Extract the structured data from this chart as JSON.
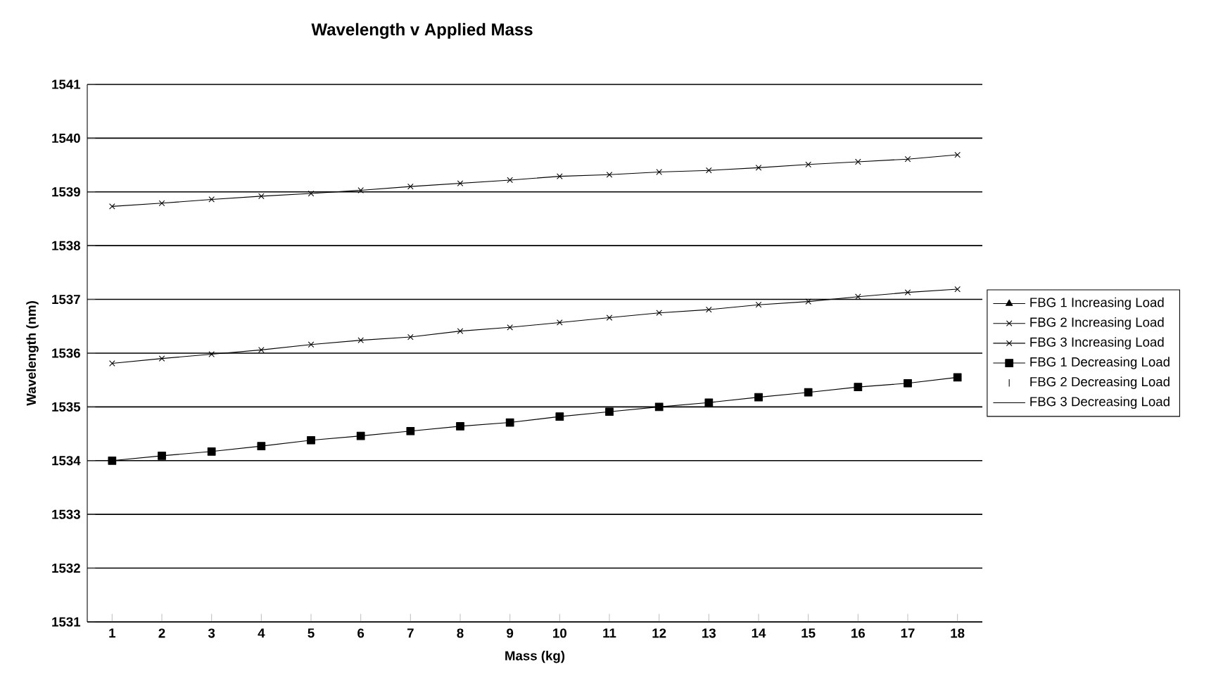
{
  "chart_data": {
    "type": "line",
    "title": "Wavelength v Applied Mass",
    "xlabel": "Mass (kg)",
    "ylabel": "Wavelength (nm)",
    "categories": [
      "1",
      "2",
      "3",
      "4",
      "5",
      "6",
      "7",
      "8",
      "9",
      "10",
      "11",
      "12",
      "13",
      "14",
      "15",
      "16",
      "17",
      "18"
    ],
    "ylim": [
      1531,
      1541
    ],
    "yticks": [
      1531,
      1532,
      1533,
      1534,
      1535,
      1536,
      1537,
      1538,
      1539,
      1540,
      1541
    ],
    "grid": "y",
    "legend": "right",
    "series": [
      {
        "name": "FBG 1 Increasing Load",
        "color": "#000000",
        "marker": "triangle",
        "values": [
          null,
          null,
          null,
          null,
          null,
          null,
          null,
          null,
          null,
          null,
          null,
          null,
          null,
          null,
          null,
          null,
          null,
          null
        ]
      },
      {
        "name": "FBG 2 Increasing Load",
        "color": "#000000",
        "marker": "cross",
        "values": [
          1535.81,
          1535.9,
          1535.98,
          1536.06,
          1536.16,
          1536.24,
          1536.3,
          1536.41,
          1536.48,
          1536.57,
          1536.66,
          1536.75,
          1536.81,
          1536.9,
          1536.96,
          1537.05,
          1537.13,
          1537.19
        ]
      },
      {
        "name": "FBG 3 Increasing Load",
        "color": "#000000",
        "marker": "cross",
        "values": [
          1538.73,
          1538.79,
          1538.86,
          1538.92,
          1538.97,
          1539.03,
          1539.1,
          1539.16,
          1539.22,
          1539.29,
          1539.32,
          1539.37,
          1539.4,
          1539.45,
          1539.51,
          1539.56,
          1539.61,
          1539.69
        ]
      },
      {
        "name": "FBG 1 Decreasing Load",
        "color": "#000000",
        "marker": "square",
        "values": [
          1534.0,
          1534.09,
          1534.17,
          1534.27,
          1534.38,
          1534.46,
          1534.55,
          1534.64,
          1534.71,
          1534.82,
          1534.91,
          1535.0,
          1535.08,
          1535.18,
          1535.27,
          1535.37,
          1535.44,
          1535.55
        ]
      },
      {
        "name": "FBG 2 Decreasing Load",
        "color": "#000000",
        "type": "scatter",
        "values": [
          null,
          null,
          null,
          null,
          null,
          null,
          null,
          null,
          null,
          null,
          null,
          null,
          null,
          null,
          null,
          null,
          null,
          null
        ]
      },
      {
        "name": "FBG 3 Decreasing Load",
        "color": "#000000",
        "marker": "none",
        "values": [
          null,
          null,
          null,
          null,
          null,
          null,
          null,
          null,
          null,
          null,
          null,
          null,
          null,
          null,
          null,
          null,
          null,
          null
        ]
      }
    ]
  }
}
